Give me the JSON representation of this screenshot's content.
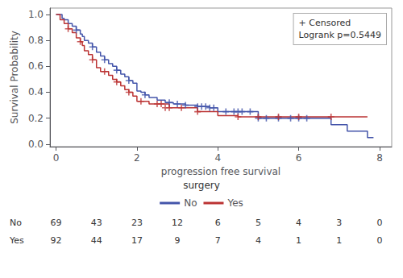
{
  "chart_data": {
    "type": "step",
    "xlabel": "progression free survival",
    "ylabel": "Survival Probability",
    "xlim": [
      -0.15,
      8.3
    ],
    "ylim": [
      -0.02,
      1.05
    ],
    "xticks": [
      0,
      2,
      4,
      6,
      8
    ],
    "yticks": [
      {
        "value": 0.0,
        "label": "0.0"
      },
      0.2,
      0.4,
      0.6,
      0.8,
      {
        "value": 1.0,
        "label": "1.0"
      }
    ],
    "grid": false,
    "legend": "bottom",
    "legend_title": "surgery",
    "annotations": [
      "+ Censored",
      "Logrank p=0.5449"
    ],
    "series": [
      {
        "name": "No",
        "color": "#4455aa",
        "marker": "plus",
        "x": [
          0,
          0.15,
          0.2,
          0.3,
          0.4,
          0.5,
          0.6,
          0.65,
          0.7,
          0.8,
          0.9,
          1.0,
          1.1,
          1.2,
          1.3,
          1.4,
          1.5,
          1.6,
          1.7,
          1.8,
          1.9,
          2.0,
          2.1,
          2.2,
          2.3,
          2.5,
          2.7,
          2.8,
          2.9,
          3.0,
          3.2,
          3.5,
          3.6,
          3.7,
          3.8,
          3.9,
          4.0,
          4.2,
          4.4,
          4.5,
          4.6,
          4.8,
          5.0,
          5.2,
          5.5,
          5.8,
          6.0,
          6.2,
          6.5,
          6.8,
          7.0,
          7.2,
          7.5,
          7.7,
          7.85
        ],
        "values": [
          1.0,
          0.97,
          0.96,
          0.93,
          0.91,
          0.88,
          0.85,
          0.83,
          0.8,
          0.78,
          0.75,
          0.71,
          0.68,
          0.65,
          0.62,
          0.6,
          0.57,
          0.54,
          0.52,
          0.49,
          0.47,
          0.41,
          0.4,
          0.38,
          0.36,
          0.34,
          0.32,
          0.32,
          0.31,
          0.31,
          0.3,
          0.29,
          0.29,
          0.29,
          0.28,
          0.28,
          0.25,
          0.25,
          0.25,
          0.25,
          0.25,
          0.25,
          0.2,
          0.2,
          0.2,
          0.2,
          0.2,
          0.2,
          0.2,
          0.15,
          0.15,
          0.1,
          0.1,
          0.05,
          0.05
        ],
        "censored_x": [
          0.5,
          0.9,
          1.2,
          1.5,
          1.8,
          2.2,
          2.8,
          3.0,
          3.2,
          3.5,
          3.6,
          3.7,
          3.8,
          3.9,
          4.2,
          4.4,
          4.5,
          4.6,
          4.8,
          5.0,
          5.2,
          5.5,
          5.8,
          6.0,
          6.2
        ],
        "censored_values": [
          0.88,
          0.75,
          0.65,
          0.57,
          0.49,
          0.38,
          0.32,
          0.31,
          0.3,
          0.29,
          0.29,
          0.29,
          0.28,
          0.28,
          0.25,
          0.25,
          0.25,
          0.25,
          0.25,
          0.2,
          0.2,
          0.2,
          0.2,
          0.2,
          0.2
        ]
      },
      {
        "name": "Yes",
        "color": "#bb3333",
        "marker": "plus",
        "x": [
          0,
          0.1,
          0.2,
          0.3,
          0.4,
          0.5,
          0.6,
          0.65,
          0.7,
          0.8,
          0.9,
          1.0,
          1.1,
          1.2,
          1.3,
          1.4,
          1.5,
          1.6,
          1.7,
          1.8,
          1.9,
          2.0,
          2.1,
          2.2,
          2.3,
          2.4,
          2.5,
          2.6,
          2.7,
          2.8,
          2.9,
          3.0,
          3.1,
          3.2,
          3.5,
          3.8,
          4.0,
          4.2,
          4.5,
          4.8,
          5.0,
          5.2,
          5.5,
          5.8,
          6.0,
          6.5,
          6.8,
          7.0,
          7.2,
          7.5,
          7.7
        ],
        "values": [
          1.0,
          0.96,
          0.93,
          0.89,
          0.86,
          0.82,
          0.79,
          0.76,
          0.72,
          0.69,
          0.65,
          0.59,
          0.56,
          0.56,
          0.53,
          0.5,
          0.48,
          0.45,
          0.42,
          0.4,
          0.37,
          0.33,
          0.33,
          0.33,
          0.31,
          0.31,
          0.31,
          0.31,
          0.31,
          0.28,
          0.28,
          0.28,
          0.28,
          0.28,
          0.25,
          0.25,
          0.22,
          0.22,
          0.21,
          0.21,
          0.21,
          0.21,
          0.21,
          0.21,
          0.21,
          0.21,
          0.21,
          0.21,
          0.21,
          0.21,
          0.21
        ],
        "censored_x": [
          0.3,
          0.6,
          0.9,
          1.2,
          1.5,
          1.8,
          2.1,
          2.5,
          2.6,
          2.7,
          2.8,
          3.1,
          3.5,
          4.5,
          5.0,
          5.5,
          6.0,
          6.8
        ],
        "censored_values": [
          0.89,
          0.79,
          0.65,
          0.56,
          0.48,
          0.4,
          0.33,
          0.31,
          0.31,
          0.28,
          0.28,
          0.28,
          0.25,
          0.21,
          0.21,
          0.21,
          0.21,
          0.21
        ]
      }
    ],
    "at_risk": {
      "times": [
        0,
        1,
        2,
        3,
        4,
        5,
        6,
        7,
        8
      ],
      "rows": [
        {
          "name": "No",
          "values": [
            69,
            43,
            23,
            12,
            6,
            5,
            4,
            3,
            0
          ]
        },
        {
          "name": "Yes",
          "values": [
            92,
            44,
            17,
            9,
            7,
            4,
            1,
            1,
            0
          ]
        }
      ]
    }
  }
}
